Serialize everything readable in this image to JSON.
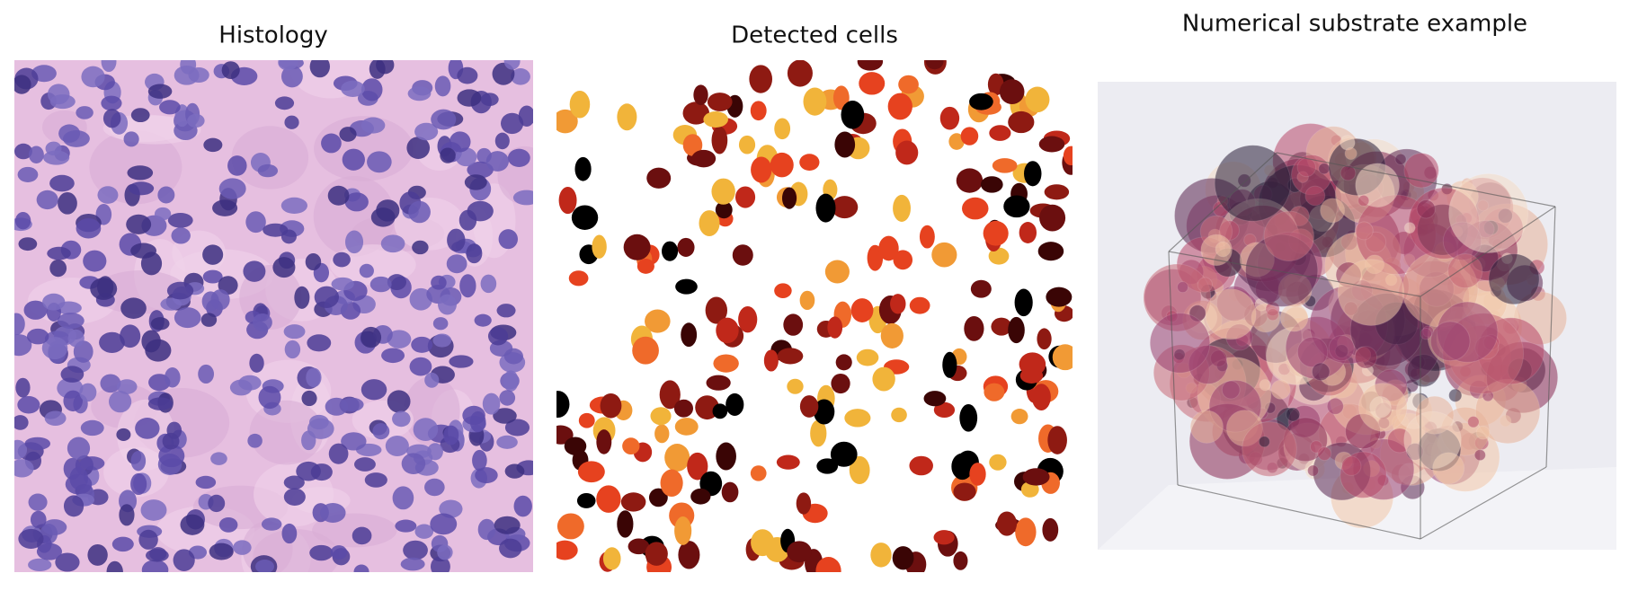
{
  "panels": [
    {
      "title": "Histology"
    },
    {
      "title": "Detected cells"
    },
    {
      "title": "Numerical substrate example"
    }
  ]
}
